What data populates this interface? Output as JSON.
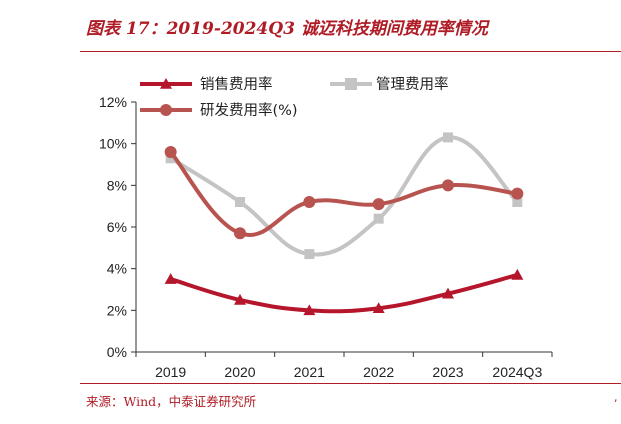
{
  "figure": {
    "title": "图表 17：2019-2024Q3 诚迈科技期间费用率情况",
    "source": "来源：Wind，中泰证券研究所"
  },
  "chart_data": {
    "type": "line",
    "categories": [
      "2019",
      "2020",
      "2021",
      "2022",
      "2023",
      "2024Q3"
    ],
    "y_tick_labels": [
      "0%",
      "2%",
      "4%",
      "6%",
      "8%",
      "10%",
      "12%"
    ],
    "ylim": [
      0,
      12
    ],
    "y_unit": "%",
    "grid": false,
    "legend_position": "top",
    "series": [
      {
        "name": "销售费用率",
        "color": "#b5162b",
        "marker": "triangle",
        "values": [
          3.5,
          2.5,
          2.0,
          2.1,
          2.8,
          3.7
        ]
      },
      {
        "name": "管理费用率",
        "color": "#c4c4c4",
        "marker": "square",
        "values": [
          9.3,
          7.2,
          4.7,
          6.4,
          10.3,
          7.2
        ]
      },
      {
        "name": "研发费用率(%)",
        "color": "#b85450",
        "marker": "circle",
        "values": [
          9.6,
          5.7,
          7.2,
          7.1,
          8.0,
          7.6
        ]
      }
    ]
  }
}
